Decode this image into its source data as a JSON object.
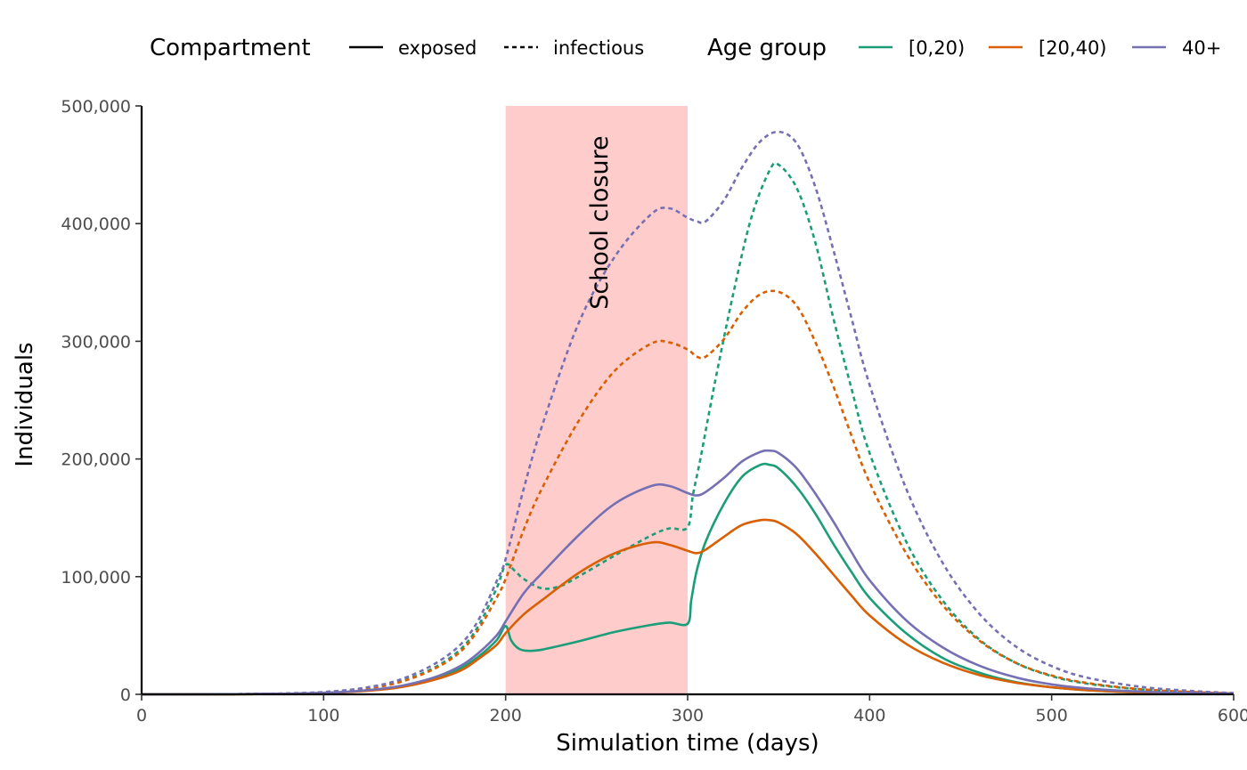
{
  "chart_data": {
    "type": "line",
    "xlabel": "Simulation time (days)",
    "ylabel": "Individuals",
    "xlim": [
      0,
      600
    ],
    "ylim": [
      0,
      500000
    ],
    "x_ticks": [
      0,
      100,
      200,
      300,
      400,
      500,
      600
    ],
    "y_ticks": [
      0,
      100000,
      200000,
      300000,
      400000,
      500000
    ],
    "x_tick_labels": [
      "0",
      "100",
      "200",
      "300",
      "400",
      "500",
      "600"
    ],
    "y_tick_labels": [
      "0",
      "100,000",
      "200,000",
      "300,000",
      "400,000",
      "500,000"
    ],
    "grid": false,
    "legend_position": "top",
    "legend": {
      "compartment_title": "Compartment",
      "compartment_items": [
        {
          "label": "exposed",
          "linetype": "solid"
        },
        {
          "label": "infectious",
          "linetype": "dashed"
        }
      ],
      "age_title": "Age group",
      "age_items": [
        {
          "label": "[0,20)",
          "color": "#1b9e77"
        },
        {
          "label": "[20,40)",
          "color": "#d95f02"
        },
        {
          "label": "40+",
          "color": "#7570b3"
        }
      ]
    },
    "annotation": {
      "label": "School closure",
      "x_start": 200,
      "x_end": 300,
      "fill": "#ff0000",
      "opacity": 0.2
    },
    "series": [
      {
        "age": "[0,20)",
        "compartment": "exposed",
        "color": "#1b9e77",
        "linetype": "solid",
        "points": [
          [
            0,
            0
          ],
          [
            50,
            100
          ],
          [
            80,
            500
          ],
          [
            100,
            1200
          ],
          [
            120,
            2800
          ],
          [
            140,
            6000
          ],
          [
            160,
            13000
          ],
          [
            175,
            22000
          ],
          [
            185,
            32000
          ],
          [
            195,
            46000
          ],
          [
            200,
            58000
          ],
          [
            203,
            46000
          ],
          [
            207,
            39000
          ],
          [
            212,
            37000
          ],
          [
            220,
            38000
          ],
          [
            240,
            45000
          ],
          [
            260,
            53000
          ],
          [
            280,
            59000
          ],
          [
            290,
            61000
          ],
          [
            300,
            60000
          ],
          [
            302,
            80000
          ],
          [
            305,
            105000
          ],
          [
            310,
            130000
          ],
          [
            320,
            162000
          ],
          [
            330,
            185000
          ],
          [
            340,
            195000
          ],
          [
            345,
            195000
          ],
          [
            350,
            192000
          ],
          [
            360,
            176000
          ],
          [
            370,
            154000
          ],
          [
            380,
            128000
          ],
          [
            390,
            104000
          ],
          [
            400,
            82000
          ],
          [
            420,
            52000
          ],
          [
            440,
            31000
          ],
          [
            460,
            18500
          ],
          [
            480,
            10500
          ],
          [
            500,
            6000
          ],
          [
            520,
            3500
          ],
          [
            550,
            1600
          ],
          [
            580,
            700
          ],
          [
            600,
            300
          ]
        ]
      },
      {
        "age": "[0,20)",
        "compartment": "infectious",
        "color": "#1b9e77",
        "linetype": "dashed",
        "points": [
          [
            0,
            0
          ],
          [
            50,
            150
          ],
          [
            80,
            700
          ],
          [
            100,
            1800
          ],
          [
            120,
            4500
          ],
          [
            140,
            10000
          ],
          [
            160,
            22000
          ],
          [
            175,
            38000
          ],
          [
            185,
            58000
          ],
          [
            195,
            90000
          ],
          [
            200,
            110000
          ],
          [
            205,
            105000
          ],
          [
            210,
            98000
          ],
          [
            220,
            90000
          ],
          [
            230,
            92000
          ],
          [
            240,
            100000
          ],
          [
            260,
            118000
          ],
          [
            280,
            135000
          ],
          [
            290,
            141000
          ],
          [
            300,
            142000
          ],
          [
            303,
            170000
          ],
          [
            307,
            200000
          ],
          [
            315,
            265000
          ],
          [
            325,
            340000
          ],
          [
            335,
            405000
          ],
          [
            345,
            445000
          ],
          [
            350,
            450000
          ],
          [
            360,
            430000
          ],
          [
            370,
            385000
          ],
          [
            380,
            320000
          ],
          [
            390,
            260000
          ],
          [
            400,
            205000
          ],
          [
            420,
            130000
          ],
          [
            440,
            80000
          ],
          [
            460,
            47000
          ],
          [
            480,
            27000
          ],
          [
            500,
            15500
          ],
          [
            520,
            9000
          ],
          [
            550,
            4000
          ],
          [
            580,
            1700
          ],
          [
            600,
            800
          ]
        ]
      },
      {
        "age": "[20,40)",
        "compartment": "exposed",
        "color": "#d95f02",
        "linetype": "solid",
        "points": [
          [
            0,
            0
          ],
          [
            50,
            100
          ],
          [
            80,
            450
          ],
          [
            100,
            1100
          ],
          [
            120,
            2600
          ],
          [
            140,
            5500
          ],
          [
            160,
            12000
          ],
          [
            175,
            20000
          ],
          [
            185,
            30000
          ],
          [
            195,
            42000
          ],
          [
            200,
            52000
          ],
          [
            210,
            68000
          ],
          [
            220,
            80000
          ],
          [
            240,
            103000
          ],
          [
            260,
            120000
          ],
          [
            280,
            129000
          ],
          [
            290,
            127000
          ],
          [
            300,
            122000
          ],
          [
            305,
            120000
          ],
          [
            310,
            123000
          ],
          [
            320,
            134000
          ],
          [
            330,
            144000
          ],
          [
            340,
            148000
          ],
          [
            345,
            148000
          ],
          [
            350,
            146000
          ],
          [
            360,
            136000
          ],
          [
            370,
            120000
          ],
          [
            380,
            102000
          ],
          [
            390,
            84000
          ],
          [
            400,
            67000
          ],
          [
            420,
            43000
          ],
          [
            440,
            27000
          ],
          [
            460,
            16500
          ],
          [
            480,
            10000
          ],
          [
            500,
            6000
          ],
          [
            520,
            3500
          ],
          [
            550,
            1600
          ],
          [
            580,
            700
          ],
          [
            600,
            300
          ]
        ]
      },
      {
        "age": "[20,40)",
        "compartment": "infectious",
        "color": "#d95f02",
        "linetype": "dashed",
        "points": [
          [
            0,
            0
          ],
          [
            50,
            150
          ],
          [
            80,
            700
          ],
          [
            100,
            1700
          ],
          [
            120,
            4200
          ],
          [
            140,
            9500
          ],
          [
            160,
            21000
          ],
          [
            175,
            36000
          ],
          [
            185,
            55000
          ],
          [
            195,
            82000
          ],
          [
            200,
            98000
          ],
          [
            210,
            140000
          ],
          [
            220,
            175000
          ],
          [
            240,
            232000
          ],
          [
            260,
            275000
          ],
          [
            280,
            298000
          ],
          [
            290,
            299000
          ],
          [
            300,
            293000
          ],
          [
            305,
            287000
          ],
          [
            310,
            287000
          ],
          [
            320,
            302000
          ],
          [
            330,
            325000
          ],
          [
            340,
            340000
          ],
          [
            350,
            342000
          ],
          [
            360,
            330000
          ],
          [
            370,
            300000
          ],
          [
            380,
            262000
          ],
          [
            390,
            220000
          ],
          [
            400,
            180000
          ],
          [
            420,
            120000
          ],
          [
            440,
            76000
          ],
          [
            460,
            46000
          ],
          [
            480,
            27000
          ],
          [
            500,
            16000
          ],
          [
            520,
            9500
          ],
          [
            550,
            4200
          ],
          [
            580,
            1800
          ],
          [
            600,
            800
          ]
        ]
      },
      {
        "age": "40+",
        "compartment": "exposed",
        "color": "#7570b3",
        "linetype": "solid",
        "points": [
          [
            0,
            0
          ],
          [
            50,
            120
          ],
          [
            80,
            550
          ],
          [
            100,
            1300
          ],
          [
            120,
            3000
          ],
          [
            140,
            6500
          ],
          [
            160,
            14000
          ],
          [
            175,
            24000
          ],
          [
            185,
            35000
          ],
          [
            195,
            50000
          ],
          [
            200,
            62000
          ],
          [
            210,
            86000
          ],
          [
            220,
            103000
          ],
          [
            240,
            135000
          ],
          [
            260,
            162000
          ],
          [
            280,
            177000
          ],
          [
            290,
            177000
          ],
          [
            300,
            171000
          ],
          [
            305,
            169000
          ],
          [
            310,
            172000
          ],
          [
            320,
            184000
          ],
          [
            330,
            198000
          ],
          [
            340,
            206000
          ],
          [
            345,
            207000
          ],
          [
            350,
            205000
          ],
          [
            360,
            192000
          ],
          [
            370,
            171000
          ],
          [
            380,
            147000
          ],
          [
            390,
            121000
          ],
          [
            400,
            97000
          ],
          [
            420,
            63000
          ],
          [
            440,
            40000
          ],
          [
            460,
            24500
          ],
          [
            480,
            14500
          ],
          [
            500,
            8500
          ],
          [
            520,
            5000
          ],
          [
            550,
            2300
          ],
          [
            580,
            1000
          ],
          [
            600,
            450
          ]
        ]
      },
      {
        "age": "40+",
        "compartment": "infectious",
        "color": "#7570b3",
        "linetype": "dashed",
        "points": [
          [
            0,
            0
          ],
          [
            50,
            180
          ],
          [
            80,
            800
          ],
          [
            100,
            2000
          ],
          [
            120,
            5000
          ],
          [
            140,
            11500
          ],
          [
            160,
            25000
          ],
          [
            175,
            42000
          ],
          [
            185,
            63000
          ],
          [
            195,
            96000
          ],
          [
            200,
            115000
          ],
          [
            210,
            175000
          ],
          [
            220,
            228000
          ],
          [
            240,
            315000
          ],
          [
            260,
            372000
          ],
          [
            280,
            408000
          ],
          [
            290,
            413000
          ],
          [
            300,
            405000
          ],
          [
            305,
            402000
          ],
          [
            310,
            402000
          ],
          [
            320,
            420000
          ],
          [
            330,
            448000
          ],
          [
            340,
            470000
          ],
          [
            350,
            478000
          ],
          [
            360,
            468000
          ],
          [
            370,
            432000
          ],
          [
            380,
            378000
          ],
          [
            390,
            320000
          ],
          [
            400,
            263000
          ],
          [
            420,
            175000
          ],
          [
            440,
            112000
          ],
          [
            460,
            69000
          ],
          [
            480,
            41000
          ],
          [
            500,
            24000
          ],
          [
            520,
            14000
          ],
          [
            550,
            6200
          ],
          [
            580,
            2600
          ],
          [
            600,
            1100
          ]
        ]
      }
    ]
  }
}
